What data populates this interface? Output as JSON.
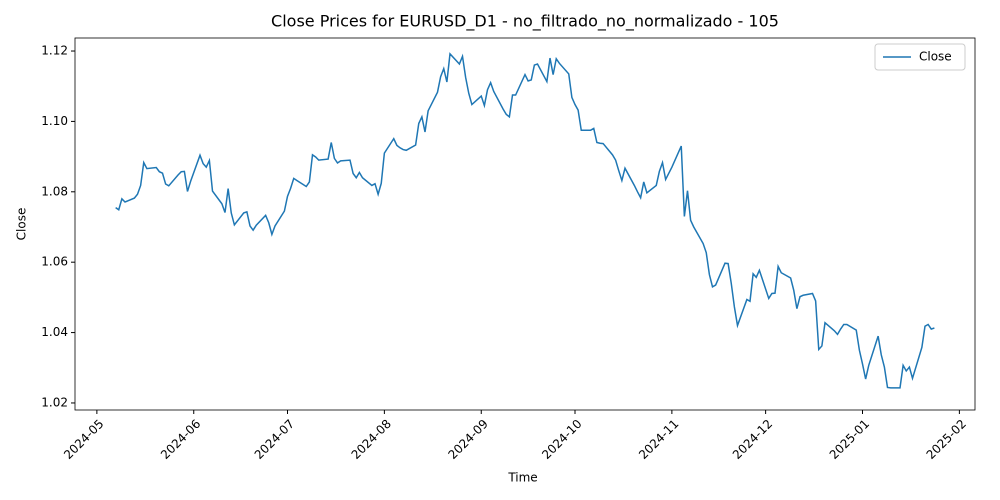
{
  "chart_data": {
    "type": "line",
    "title": "Close Prices for EURUSD_D1 - no_filtrado_no_normalizado - 105",
    "x_label": "Time",
    "y_label": "Close",
    "x": [
      6,
      7,
      8,
      9,
      12,
      13,
      14,
      15,
      16,
      19,
      20,
      21,
      22,
      23,
      26,
      27,
      28,
      29,
      30,
      33,
      34,
      35,
      36,
      37,
      40,
      41,
      42,
      43,
      44,
      47,
      48,
      49,
      50,
      51,
      54,
      55,
      56,
      57,
      60,
      61,
      62,
      63,
      64,
      67,
      68,
      69,
      70,
      71,
      74,
      75,
      76,
      77,
      78,
      81,
      82,
      83,
      84,
      85,
      88,
      89,
      90,
      91,
      92,
      95,
      96,
      97,
      98,
      99,
      102,
      103,
      104,
      105,
      106,
      109,
      110,
      111,
      112,
      113,
      116,
      117,
      118,
      119,
      120,
      123,
      124,
      125,
      126,
      127,
      130,
      131,
      132,
      133,
      134,
      137,
      138,
      139,
      140,
      141,
      144,
      145,
      146,
      147,
      148,
      151,
      152,
      153,
      154,
      155,
      158,
      159,
      160,
      161,
      162,
      165,
      166,
      167,
      168,
      169,
      172,
      173,
      174,
      175,
      176,
      179,
      180,
      181,
      182,
      184,
      187,
      188,
      189,
      190,
      191,
      194,
      195,
      196,
      197,
      198,
      201,
      202,
      203,
      204,
      205,
      208,
      209,
      210,
      211,
      212,
      215,
      216,
      217,
      218,
      219,
      222,
      223,
      224,
      225,
      226,
      229,
      230,
      231,
      232,
      233,
      236,
      237,
      238,
      239,
      240,
      243,
      244,
      245,
      246,
      247,
      250,
      251,
      252,
      253,
      254,
      257,
      258,
      259,
      260,
      261,
      264,
      265,
      266,
      267,
      268
    ],
    "series": [
      {
        "name": "Close",
        "color": "#1f77b4",
        "values": [
          1.0755,
          1.0749,
          1.078,
          1.0771,
          1.0782,
          1.0793,
          1.0818,
          1.0883,
          1.0866,
          1.0869,
          1.0857,
          1.0853,
          1.0822,
          1.0817,
          1.0848,
          1.0857,
          1.0858,
          1.0801,
          1.083,
          1.0904,
          1.088,
          1.087,
          1.0889,
          1.0802,
          1.0766,
          1.0741,
          1.0809,
          1.074,
          1.0706,
          1.074,
          1.0743,
          1.0703,
          1.0691,
          1.0705,
          1.0733,
          1.0712,
          1.0679,
          1.0703,
          1.0745,
          1.0787,
          1.081,
          1.0838,
          1.0832,
          1.0815,
          1.0828,
          1.0905,
          1.0899,
          1.089,
          1.0893,
          1.094,
          1.0895,
          1.0882,
          1.0888,
          1.089,
          1.0852,
          1.084,
          1.0855,
          1.084,
          1.0818,
          1.0823,
          1.0793,
          1.0824,
          1.091,
          1.0951,
          1.0932,
          1.0925,
          1.092,
          1.0918,
          1.0933,
          1.0994,
          1.1013,
          1.097,
          1.103,
          1.1083,
          1.1127,
          1.115,
          1.1112,
          1.1192,
          1.1163,
          1.1185,
          1.1125,
          1.108,
          1.1048,
          1.1072,
          1.1045,
          1.109,
          1.111,
          1.1085,
          1.1035,
          1.102,
          1.1013,
          1.1075,
          1.1075,
          1.1133,
          1.1115,
          1.1118,
          1.116,
          1.1163,
          1.1113,
          1.118,
          1.1133,
          1.1178,
          1.1165,
          1.1135,
          1.1068,
          1.1048,
          1.1032,
          1.0975,
          1.0975,
          1.098,
          1.094,
          1.0938,
          1.0937,
          1.0905,
          1.089,
          1.086,
          1.0832,
          1.0867,
          1.0818,
          1.08,
          1.0783,
          1.0828,
          1.0797,
          1.0818,
          1.0858,
          1.0883,
          1.0835,
          1.087,
          1.093,
          1.073,
          1.0803,
          1.0719,
          1.07,
          1.0653,
          1.0627,
          1.0565,
          1.053,
          1.0535,
          1.0597,
          1.0596,
          1.054,
          1.0473,
          1.042,
          1.0494,
          1.0489,
          1.0567,
          1.0557,
          1.0577,
          1.0497,
          1.0511,
          1.0512,
          1.0588,
          1.057,
          1.0555,
          1.052,
          1.0468,
          1.0502,
          1.0506,
          1.0511,
          1.049,
          1.0352,
          1.0362,
          1.0428,
          1.0405,
          1.0395,
          1.041,
          1.0423,
          1.0423,
          1.0407,
          1.035,
          1.0311,
          1.0268,
          1.0307,
          1.039,
          1.0337,
          1.0302,
          1.0244,
          1.0243,
          1.0243,
          1.0307,
          1.0291,
          1.0302,
          1.027,
          1.0358,
          1.0418,
          1.0423,
          1.041,
          1.0413
        ]
      }
    ],
    "xlim": [
      -7,
      281
    ],
    "xticks": [
      {
        "value": 0,
        "label": "2024-05"
      },
      {
        "value": 31,
        "label": "2024-06"
      },
      {
        "value": 61,
        "label": "2024-07"
      },
      {
        "value": 92,
        "label": "2024-08"
      },
      {
        "value": 123,
        "label": "2024-09"
      },
      {
        "value": 153,
        "label": "2024-10"
      },
      {
        "value": 184,
        "label": "2024-11"
      },
      {
        "value": 214,
        "label": "2024-12"
      },
      {
        "value": 245,
        "label": "2025-01"
      },
      {
        "value": 276,
        "label": "2025-02"
      }
    ],
    "ylim": [
      1.018,
      1.1237
    ],
    "yticks": [
      1.02,
      1.04,
      1.06,
      1.08,
      {
        "value": 1.1,
        "label": "1.10"
      },
      1.12
    ],
    "legend": "upper right"
  }
}
